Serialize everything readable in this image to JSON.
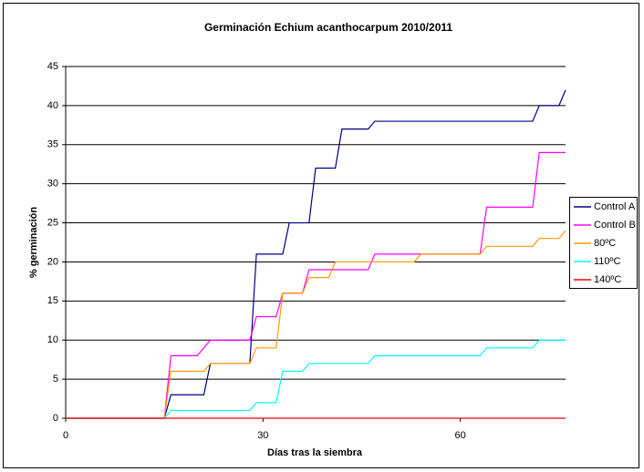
{
  "chart_data": {
    "type": "line",
    "title": "Germinación Echium  acanthocarpum 2010/2011",
    "x_label": "Días tras la siembra",
    "y_label": "% germinación",
    "xlim": [
      0,
      76
    ],
    "xticks": [
      0,
      30,
      60
    ],
    "ylim": [
      0,
      45
    ],
    "yticks": [
      0,
      5,
      10,
      15,
      20,
      25,
      30,
      35,
      40,
      45
    ],
    "grid": true,
    "legend": "right",
    "series": [
      {
        "name": "Control A",
        "color": "#000080",
        "x": [
          0,
          15,
          16,
          21,
          22,
          28,
          29,
          33,
          34,
          37,
          38,
          41,
          42,
          46,
          47,
          71,
          72,
          75,
          76
        ],
        "values": [
          0,
          0,
          3,
          3,
          7,
          7,
          21,
          21,
          25,
          25,
          32,
          32,
          37,
          37,
          38,
          38,
          40,
          40,
          42
        ]
      },
      {
        "name": "Control B",
        "color": "#ff00ff",
        "x": [
          0,
          15,
          16,
          20,
          22,
          28,
          29,
          32,
          33,
          36,
          37,
          46,
          47,
          63,
          64,
          71,
          72,
          76
        ],
        "values": [
          0,
          0,
          8,
          8,
          10,
          10,
          13,
          13,
          16,
          16,
          19,
          19,
          21,
          21,
          27,
          27,
          34,
          34
        ]
      },
      {
        "name": "80ºC",
        "color": "#ff9900",
        "x": [
          0,
          15,
          16,
          21,
          22,
          28,
          29,
          32,
          33,
          36,
          37,
          40,
          41,
          53,
          54,
          63,
          64,
          71,
          72,
          75,
          76
        ],
        "values": [
          0,
          0,
          6,
          6,
          7,
          7,
          9,
          9,
          16,
          16,
          18,
          18,
          20,
          20,
          21,
          21,
          22,
          22,
          23,
          23,
          24
        ]
      },
      {
        "name": "110ºC",
        "color": "#00ffff",
        "x": [
          0,
          15,
          16,
          28,
          29,
          32,
          33,
          36,
          37,
          46,
          47,
          63,
          64,
          71,
          72,
          76
        ],
        "values": [
          0,
          0,
          1,
          1,
          2,
          2,
          6,
          6,
          7,
          7,
          8,
          8,
          9,
          9,
          10,
          10
        ]
      },
      {
        "name": "140ºC",
        "color": "#ff0000",
        "x": [
          0,
          76
        ],
        "values": [
          0,
          0
        ]
      }
    ]
  }
}
